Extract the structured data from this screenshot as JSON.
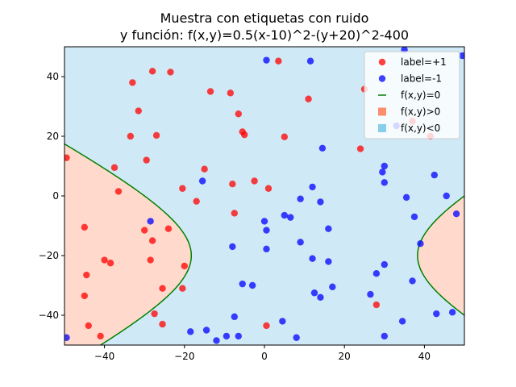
{
  "chart_data": {
    "type": "scatter",
    "title_line1": "Muestra con etiquetas con ruido",
    "title_line2": "y función: f(x,y)=0.5(x-10)^2-(y+20)^2-400",
    "xlabel": "",
    "ylabel": "",
    "xlim": [
      -50,
      50
    ],
    "ylim": [
      -50,
      50
    ],
    "xticks": [
      -40,
      -20,
      0,
      20,
      40
    ],
    "yticks": [
      -40,
      -20,
      0,
      20,
      40
    ],
    "grid": false,
    "legend_position": "upper-right",
    "function": {
      "a": 0.5,
      "cx": 10,
      "cy": -20,
      "c": 400
    },
    "colors": {
      "positive_points": "#ff0000",
      "negative_points": "#0000ff",
      "boundary": "#008000",
      "region_positive": "#ffdacc",
      "region_negative": "#d0e9f6"
    },
    "legend": [
      {
        "label": "label=+1",
        "kind": "point",
        "color": "#ff0000"
      },
      {
        "label": "label=-1",
        "kind": "point",
        "color": "#0000ff"
      },
      {
        "label": "f(x,y)=0",
        "kind": "line",
        "color": "#008000"
      },
      {
        "label": "f(x,y)>0",
        "kind": "square",
        "color": "#fa8e6e"
      },
      {
        "label": "f(x,y)<0",
        "kind": "square",
        "color": "#87ceeb"
      }
    ],
    "series": [
      {
        "name": "label=+1",
        "points": [
          [
            -49.5,
            12.8
          ],
          [
            -45,
            -10.5
          ],
          [
            -44.5,
            -26.5
          ],
          [
            -45,
            -33.5
          ],
          [
            -44,
            -43.5
          ],
          [
            -41,
            -47
          ],
          [
            -40,
            -21.5
          ],
          [
            -38.5,
            -22.5
          ],
          [
            -37.5,
            9.5
          ],
          [
            -36.5,
            1.5
          ],
          [
            -33.5,
            20
          ],
          [
            -33,
            38
          ],
          [
            -31.5,
            28.5
          ],
          [
            -30,
            -11.5
          ],
          [
            -29.5,
            12
          ],
          [
            -28.5,
            -21.5
          ],
          [
            -28,
            -15
          ],
          [
            -28,
            41.8
          ],
          [
            -27,
            20.3
          ],
          [
            -27.5,
            -39.5
          ],
          [
            -25.5,
            -31
          ],
          [
            -25.5,
            -43
          ],
          [
            -24,
            -11
          ],
          [
            -23.5,
            41.5
          ],
          [
            -20.5,
            -31
          ],
          [
            -20.5,
            2.5
          ],
          [
            -20,
            -23.5
          ],
          [
            -17,
            -1.8
          ],
          [
            -15,
            9
          ],
          [
            -13.5,
            35
          ],
          [
            -8.5,
            34.5
          ],
          [
            -8,
            4
          ],
          [
            -7.5,
            -5.8
          ],
          [
            -6.5,
            27.5
          ],
          [
            -5.5,
            21.5
          ],
          [
            -5,
            20.5
          ],
          [
            -2.5,
            5
          ],
          [
            0.5,
            -43.5
          ],
          [
            1,
            2.5
          ],
          [
            3.5,
            45.2
          ],
          [
            5,
            19.8
          ],
          [
            11,
            32.5
          ],
          [
            24,
            15.8
          ],
          [
            25,
            35.8
          ],
          [
            28,
            -36.5
          ],
          [
            37,
            25
          ],
          [
            41.5,
            20
          ]
        ]
      },
      {
        "name": "label=-1",
        "points": [
          [
            -49.5,
            -47.5
          ],
          [
            -28.5,
            -8.5
          ],
          [
            -18.5,
            -45.5
          ],
          [
            -15.5,
            5
          ],
          [
            -14.5,
            -45
          ],
          [
            -12,
            -48.5
          ],
          [
            -9.5,
            -47
          ],
          [
            -8,
            -17
          ],
          [
            -7.5,
            -40.5
          ],
          [
            -6.5,
            -47
          ],
          [
            -5.5,
            -29.5
          ],
          [
            -3,
            -30
          ],
          [
            0,
            -8.5
          ],
          [
            0.5,
            -11.5
          ],
          [
            0.5,
            -17.8
          ],
          [
            0.5,
            45.5
          ],
          [
            4.5,
            -42
          ],
          [
            5,
            -6.5
          ],
          [
            6.5,
            -7.2
          ],
          [
            8,
            -47.5
          ],
          [
            9,
            -15.5
          ],
          [
            9,
            -1
          ],
          [
            12,
            -21
          ],
          [
            12,
            3
          ],
          [
            12.5,
            -32.5
          ],
          [
            11.5,
            45.2
          ],
          [
            14,
            -2
          ],
          [
            14,
            -34
          ],
          [
            14.5,
            16
          ],
          [
            16,
            -11
          ],
          [
            16,
            -22
          ],
          [
            17,
            -30.5
          ],
          [
            26.5,
            -33
          ],
          [
            28,
            -26
          ],
          [
            29.5,
            8
          ],
          [
            30,
            4.5
          ],
          [
            30,
            10
          ],
          [
            30,
            -23
          ],
          [
            30,
            -47
          ],
          [
            33,
            23.5
          ],
          [
            34.5,
            -42
          ],
          [
            35,
            49
          ],
          [
            35.5,
            -0.5
          ],
          [
            37,
            -28.5
          ],
          [
            37.5,
            -7
          ],
          [
            39,
            -16
          ],
          [
            42.5,
            7
          ],
          [
            43,
            -39.5
          ],
          [
            45.5,
            0
          ],
          [
            47,
            -39
          ],
          [
            48,
            -6
          ],
          [
            49.5,
            47
          ]
        ]
      }
    ]
  }
}
